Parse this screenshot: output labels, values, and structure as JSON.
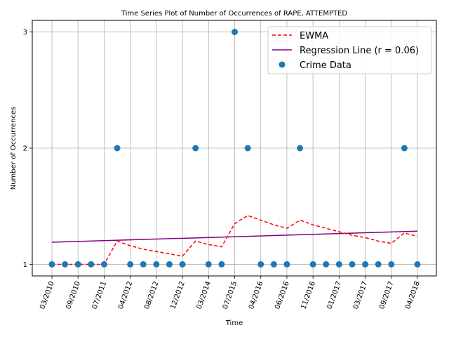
{
  "chart_data": {
    "type": "scatter",
    "title": "Time Series Plot of Number of Occurrences of RAPE, ATTEMPTED",
    "xlabel": "Time",
    "ylabel": "Number of Occurrences",
    "x_ticks": [
      "03/2010",
      "09/2010",
      "07/2011",
      "04/2012",
      "08/2012",
      "12/2012",
      "03/2014",
      "07/2015",
      "04/2016",
      "06/2016",
      "11/2016",
      "01/2017",
      "03/2017",
      "09/2017",
      "04/2018"
    ],
    "y_ticks": [
      1,
      2,
      3
    ],
    "ylim": [
      0.9,
      3.1
    ],
    "grid": true,
    "legend_position": "top-right",
    "series": [
      {
        "name": "EWMA",
        "kind": "line",
        "style": "dashed",
        "color": "#ff0000",
        "values": [
          1.0,
          1.0,
          1.0,
          1.0,
          1.0,
          1.2,
          1.16,
          1.13,
          1.11,
          1.09,
          1.07,
          1.2,
          1.17,
          1.15,
          1.35,
          1.42,
          1.38,
          1.34,
          1.31,
          1.38,
          1.34,
          1.31,
          1.28,
          1.25,
          1.23,
          1.2,
          1.18,
          1.27,
          1.24
        ]
      },
      {
        "name": "Regression Line (r = 0.06)",
        "kind": "line",
        "style": "solid",
        "color": "#800080",
        "values": [
          1.19,
          1.285
        ]
      },
      {
        "name": "Crime Data",
        "kind": "scatter",
        "color": "#1f77b4",
        "values": [
          1,
          1,
          1,
          1,
          1,
          2,
          1,
          1,
          1,
          1,
          1,
          2,
          1,
          1,
          3,
          2,
          1,
          1,
          1,
          2,
          1,
          1,
          1,
          1,
          1,
          1,
          1,
          2,
          1
        ]
      }
    ]
  }
}
